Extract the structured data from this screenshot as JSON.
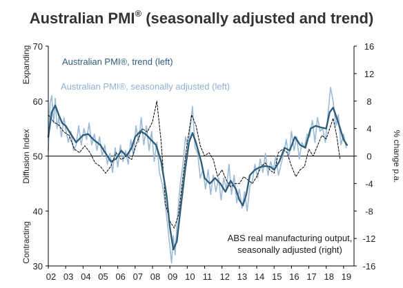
{
  "chart_data": {
    "type": "line",
    "title": "Australian PMI",
    "title_mark": "®",
    "title_suffix": " (seasonally adjusted and trend)",
    "ylabel_left": "Diffusion Index",
    "ylabel_left_top": "Expanding",
    "ylabel_left_bottom": "Contracting",
    "ylabel_right": "% change p.a.",
    "ylim_left": [
      30,
      70
    ],
    "ylim_right": [
      -16,
      16
    ],
    "yticks_left": [
      30,
      40,
      50,
      60,
      70
    ],
    "yticks_right": [
      -16,
      -12,
      -8,
      -4,
      0,
      4,
      8,
      12,
      16
    ],
    "xlim": [
      2002,
      2019.6
    ],
    "x_tick_labels": [
      "02",
      "03",
      "04",
      "05",
      "06",
      "07",
      "08",
      "09",
      "10",
      "11",
      "12",
      "13",
      "14",
      "15",
      "16",
      "17",
      "18",
      "19"
    ],
    "x_tick_years": [
      2002,
      2003,
      2004,
      2005,
      2006,
      2007,
      2008,
      2009,
      2010,
      2011,
      2012,
      2013,
      2014,
      2015,
      2016,
      2017,
      2018,
      2019
    ],
    "reference_line_left": 50,
    "colors": {
      "trend": "#2e5d7a",
      "sa": "#9bb9d8",
      "abs": "#000000",
      "zero": "#000000"
    },
    "annotations": {
      "trend_label": "Australian PMI®, trend (left)",
      "sa_label": "Australian PMI®, seasonally adjusted (left)",
      "abs_label_line1": "ABS real manufacturing output,",
      "abs_label_line2": "seasonally adjusted (right)"
    },
    "series": [
      {
        "name": "Australian PMI®, trend (left)",
        "axis": "left",
        "style": "solid-thick",
        "x": [
          2002.0,
          2002.2,
          2002.4,
          2002.6,
          2002.8,
          2003.0,
          2003.3,
          2003.6,
          2004.0,
          2004.3,
          2004.6,
          2005.0,
          2005.3,
          2005.6,
          2005.9,
          2006.2,
          2006.5,
          2006.8,
          2007.0,
          2007.3,
          2007.6,
          2007.9,
          2008.2,
          2008.5,
          2008.8,
          2009.0,
          2009.2,
          2009.4,
          2009.6,
          2009.9,
          2010.1,
          2010.3,
          2010.5,
          2010.8,
          2011.0,
          2011.3,
          2011.6,
          2011.9,
          2012.2,
          2012.5,
          2012.8,
          2013.0,
          2013.2,
          2013.4,
          2013.6,
          2013.9,
          2014.2,
          2014.5,
          2014.8,
          2015.0,
          2015.3,
          2015.6,
          2015.9,
          2016.2,
          2016.5,
          2016.8,
          2017.1,
          2017.4,
          2017.7,
          2018.0,
          2018.2,
          2018.4,
          2018.6,
          2018.8,
          2019.0,
          2019.2
        ],
        "values": [
          53.5,
          58.0,
          59.2,
          57.5,
          56.0,
          55.5,
          54.0,
          52.5,
          53.8,
          54.0,
          53.0,
          52.0,
          50.5,
          49.0,
          49.5,
          51.0,
          50.0,
          51.5,
          53.5,
          54.5,
          54.0,
          53.0,
          52.0,
          49.0,
          43.0,
          37.0,
          33.0,
          34.5,
          40.0,
          48.0,
          52.5,
          54.2,
          52.5,
          49.0,
          46.0,
          45.0,
          46.0,
          45.0,
          43.5,
          45.5,
          44.0,
          42.0,
          41.0,
          43.0,
          46.5,
          47.5,
          48.0,
          48.2,
          48.0,
          47.5,
          49.0,
          51.5,
          51.0,
          53.5,
          52.0,
          51.5,
          55.0,
          55.5,
          55.2,
          55.0,
          58.0,
          58.8,
          57.0,
          55.0,
          53.0,
          52.0
        ]
      },
      {
        "name": "Australian PMI®, seasonally adjusted (left)",
        "axis": "left",
        "style": "solid-light",
        "x": [
          2002.0,
          2002.1,
          2002.2,
          2002.3,
          2002.4,
          2002.5,
          2002.6,
          2002.75,
          2002.9,
          2003.0,
          2003.15,
          2003.3,
          2003.45,
          2003.6,
          2003.75,
          2003.9,
          2004.05,
          2004.2,
          2004.35,
          2004.5,
          2004.65,
          2004.8,
          2004.95,
          2005.1,
          2005.25,
          2005.4,
          2005.55,
          2005.7,
          2005.85,
          2006.0,
          2006.15,
          2006.3,
          2006.45,
          2006.6,
          2006.75,
          2006.9,
          2007.05,
          2007.2,
          2007.35,
          2007.5,
          2007.65,
          2007.8,
          2007.95,
          2008.1,
          2008.25,
          2008.4,
          2008.55,
          2008.7,
          2008.85,
          2009.0,
          2009.1,
          2009.2,
          2009.3,
          2009.45,
          2009.6,
          2009.75,
          2009.9,
          2010.05,
          2010.2,
          2010.3,
          2010.45,
          2010.6,
          2010.75,
          2010.9,
          2011.05,
          2011.2,
          2011.35,
          2011.5,
          2011.65,
          2011.8,
          2011.95,
          2012.1,
          2012.25,
          2012.4,
          2012.55,
          2012.7,
          2012.85,
          2013.0,
          2013.15,
          2013.3,
          2013.45,
          2013.6,
          2013.75,
          2013.9,
          2014.05,
          2014.2,
          2014.35,
          2014.5,
          2014.65,
          2014.8,
          2014.95,
          2015.1,
          2015.25,
          2015.4,
          2015.55,
          2015.7,
          2015.85,
          2016.0,
          2016.15,
          2016.3,
          2016.45,
          2016.6,
          2016.75,
          2016.9,
          2017.05,
          2017.2,
          2017.35,
          2017.5,
          2017.65,
          2017.8,
          2017.95,
          2018.1,
          2018.25,
          2018.4,
          2018.55,
          2018.7,
          2018.85,
          2019.0,
          2019.15
        ],
        "values": [
          51.0,
          59.5,
          61.0,
          56.0,
          60.5,
          55.0,
          57.0,
          53.5,
          57.0,
          55.0,
          52.5,
          54.5,
          51.0,
          52.0,
          55.5,
          52.0,
          55.0,
          53.0,
          56.0,
          52.0,
          54.0,
          51.0,
          53.5,
          50.0,
          52.0,
          48.5,
          50.5,
          47.0,
          51.5,
          48.0,
          52.0,
          49.0,
          51.0,
          48.5,
          53.0,
          50.0,
          55.5,
          52.5,
          57.0,
          52.0,
          55.5,
          51.0,
          54.5,
          49.0,
          52.5,
          47.0,
          45.0,
          42.0,
          38.0,
          33.5,
          30.5,
          35.5,
          32.0,
          39.5,
          45.0,
          48.5,
          53.5,
          51.5,
          56.0,
          59.0,
          51.5,
          50.5,
          46.0,
          47.5,
          44.0,
          47.5,
          43.0,
          46.5,
          43.5,
          46.0,
          42.0,
          46.0,
          44.0,
          48.5,
          43.0,
          46.5,
          41.5,
          44.0,
          40.5,
          43.5,
          40.0,
          44.5,
          45.5,
          48.5,
          46.0,
          49.5,
          47.0,
          50.5,
          46.5,
          49.0,
          47.5,
          50.0,
          46.5,
          48.5,
          50.5,
          53.0,
          49.5,
          54.5,
          51.0,
          53.5,
          49.5,
          52.5,
          51.5,
          54.0,
          53.5,
          56.5,
          52.5,
          57.0,
          54.5,
          55.0,
          52.5,
          57.5,
          62.5,
          60.0,
          55.5,
          57.5,
          52.0,
          54.0,
          51.5
        ]
      },
      {
        "name": "ABS real manufacturing output, seasonally adjusted (right)",
        "axis": "right",
        "style": "dashed",
        "x": [
          2002.0,
          2002.3,
          2002.6,
          2002.9,
          2003.2,
          2003.5,
          2003.8,
          2004.1,
          2004.4,
          2004.7,
          2005.0,
          2005.3,
          2005.6,
          2005.9,
          2006.2,
          2006.5,
          2006.8,
          2007.1,
          2007.4,
          2007.7,
          2008.0,
          2008.25,
          2008.5,
          2008.75,
          2009.0,
          2009.25,
          2009.5,
          2009.75,
          2010.0,
          2010.25,
          2010.5,
          2010.75,
          2011.0,
          2011.25,
          2011.5,
          2011.75,
          2012.0,
          2012.25,
          2012.5,
          2012.75,
          2013.0,
          2013.25,
          2013.5,
          2013.75,
          2014.0,
          2014.25,
          2014.5,
          2014.75,
          2015.0,
          2015.25,
          2015.5,
          2015.75,
          2016.0,
          2016.25,
          2016.5,
          2016.75,
          2017.0,
          2017.25,
          2017.5,
          2017.75,
          2018.0,
          2018.2,
          2018.4,
          2018.6,
          2018.8
        ],
        "values": [
          6.0,
          5.0,
          4.5,
          3.5,
          3.0,
          1.0,
          0.5,
          1.5,
          0.5,
          -1.0,
          -1.5,
          -2.5,
          -1.5,
          0.5,
          -0.5,
          0.0,
          -0.5,
          2.0,
          4.0,
          3.5,
          5.0,
          8.0,
          2.0,
          -7.0,
          -9.5,
          -10.5,
          -8.5,
          -3.0,
          2.0,
          6.0,
          4.5,
          1.5,
          0.0,
          0.5,
          -0.5,
          -3.0,
          -2.0,
          -3.5,
          -4.5,
          -4.0,
          -4.0,
          -3.0,
          -3.5,
          -4.0,
          -3.0,
          -1.5,
          -1.0,
          -2.0,
          -2.5,
          0.5,
          1.0,
          0.5,
          -1.5,
          -3.0,
          -2.0,
          -1.5,
          1.0,
          0.0,
          1.5,
          3.0,
          2.5,
          4.0,
          5.5,
          3.0,
          -0.5
        ]
      }
    ]
  }
}
